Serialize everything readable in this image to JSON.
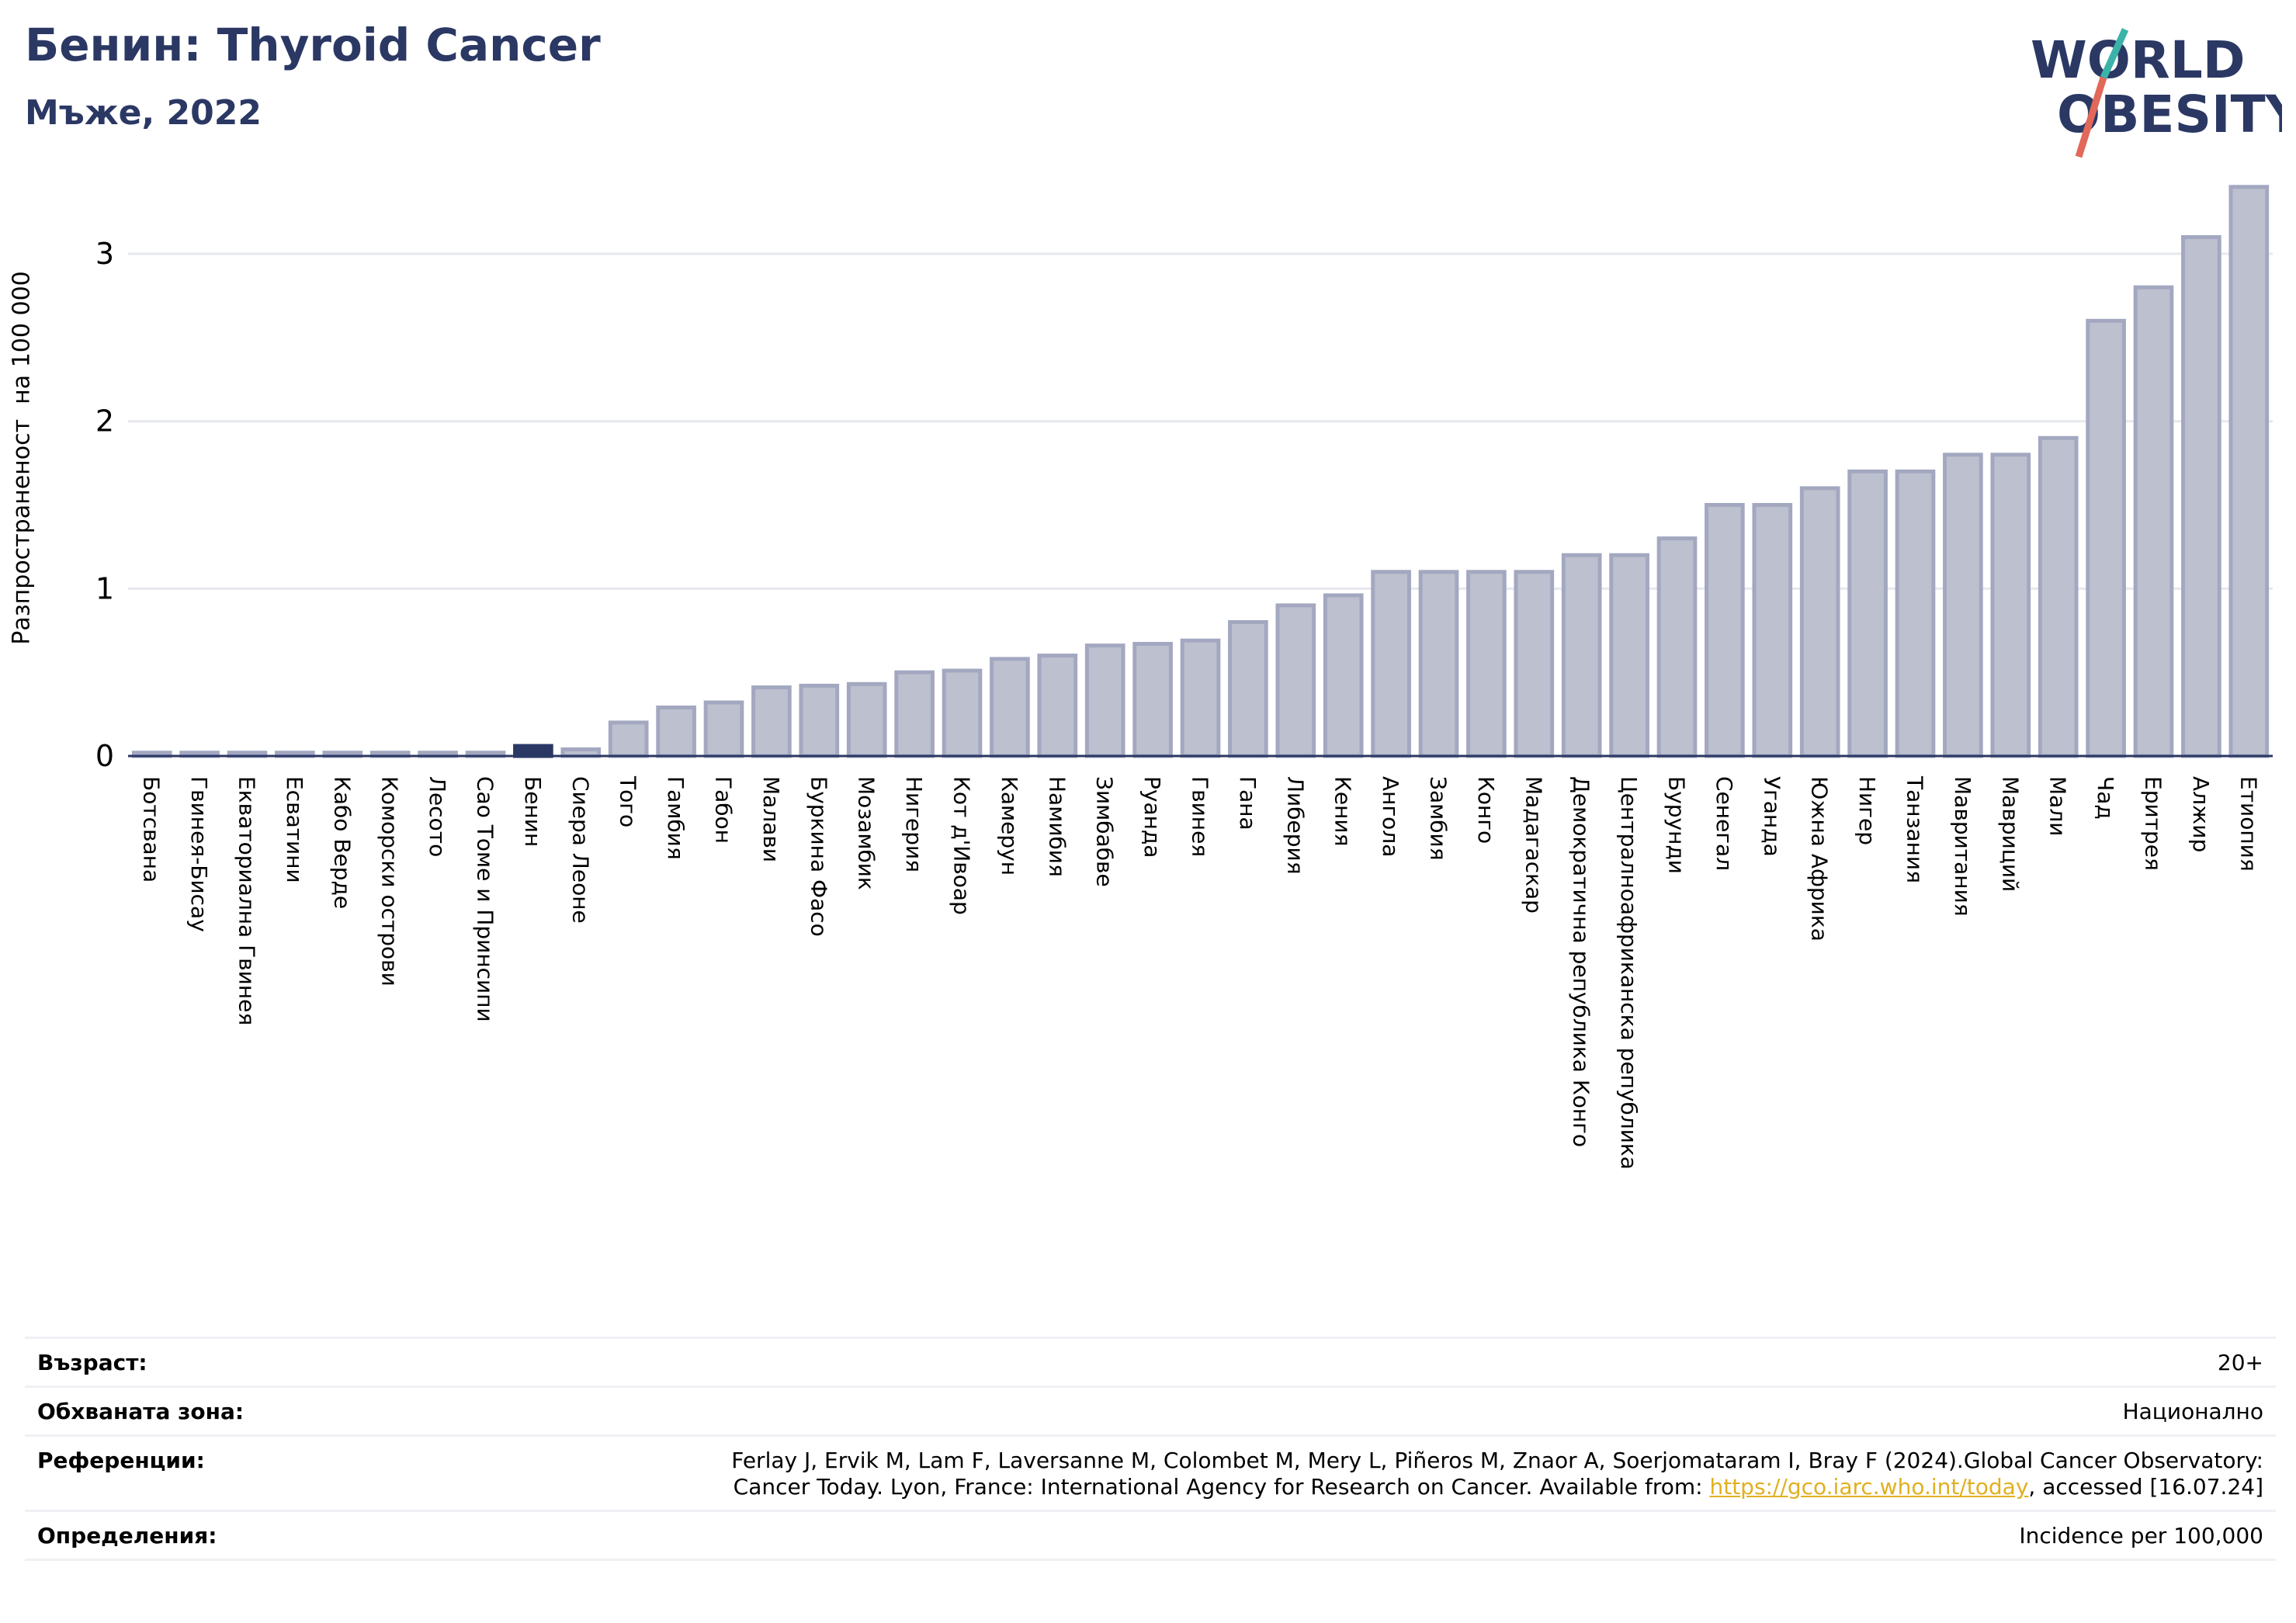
{
  "header": {
    "title": "Бенин: Thyroid Cancer",
    "subtitle": "Мъже, 2022"
  },
  "logo": {
    "line1": "WORLD",
    "line2": "OBESITY",
    "colors": {
      "text": "#2b3864",
      "slash_top": "#3bb3a8",
      "slash_bottom": "#e2685a"
    }
  },
  "colors": {
    "bar": "#bcc0cf",
    "bar_edge": "#a3a8c0",
    "highlight": "#2b3864",
    "grid": "#e6e8ef",
    "axis": "#2b3864",
    "link": "#e0b020"
  },
  "chart_data": {
    "type": "bar",
    "title": "Бенин: Thyroid Cancer",
    "subtitle": "Мъже, 2022",
    "ylabel": "Разпространеност  на 100 000",
    "xlabel": "",
    "ylim": [
      0,
      3.45
    ],
    "yticks": [
      0,
      1,
      2,
      3
    ],
    "grid": true,
    "highlight": "Бенин",
    "categories": [
      "Ботсвана",
      "Гвинея-Бисау",
      "Екваториална Гвинея",
      "Есватини",
      "Кабо Верде",
      "Коморски острови",
      "Лесото",
      "Сао Томе и Принсипи",
      "Бенин",
      "Сиера Леоне",
      "Того",
      "Гамбия",
      "Габон",
      "Малави",
      "Буркина Фасо",
      "Мозамбик",
      "Нигерия",
      "Кот д'Ивоар",
      "Камерун",
      "Намибия",
      "Зимбабве",
      "Руанда",
      "Гвинея",
      "Гана",
      "Либерия",
      "Кения",
      "Ангола",
      "Замбия",
      "Конго",
      "Мадагаскар",
      "Демократична република Конго",
      "Централноафриканска република",
      "Бурунди",
      "Сенегал",
      "Уганда",
      "Южна Африка",
      "Нигер",
      "Танзания",
      "Мавритания",
      "Мавриций",
      "Мали",
      "Чад",
      "Еритрея",
      "Алжир",
      "Етиопия"
    ],
    "values": [
      0.02,
      0.02,
      0.02,
      0.02,
      0.02,
      0.02,
      0.02,
      0.02,
      0.06,
      0.04,
      0.2,
      0.29,
      0.32,
      0.41,
      0.42,
      0.43,
      0.5,
      0.51,
      0.58,
      0.6,
      0.66,
      0.67,
      0.69,
      0.8,
      0.9,
      0.96,
      1.1,
      1.1,
      1.1,
      1.1,
      1.2,
      1.2,
      1.3,
      1.5,
      1.5,
      1.6,
      1.7,
      1.7,
      1.8,
      1.8,
      1.9,
      2.6,
      2.8,
      3.1,
      3.4
    ]
  },
  "info": {
    "age_label": "Възраст:",
    "age_value": "20+",
    "coverage_label": "Обхваната зона:",
    "coverage_value": "Национално",
    "references_label": "Референции:",
    "references_line1": "Ferlay J, Ervik M, Lam F, Laversanne M, Colombet M, Mery L, Piñeros M, Znaor A, Soerjomataram I, Bray F (2024).Global Cancer Observatory:",
    "references_line2_prefix": "Cancer Today. Lyon, France: International Agency for Research on Cancer. Available from: ",
    "references_link": "https://gco.iarc.who.int/today",
    "references_line2_suffix": ", accessed [16.07.24]",
    "definitions_label": "Определения:",
    "definitions_value": "Incidence per 100,000"
  }
}
